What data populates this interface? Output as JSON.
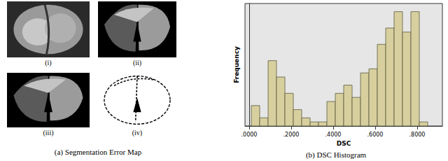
{
  "panels": [
    {
      "caption": "(a) Segmentation Error Map",
      "images": [
        "(i)",
        "(ii)",
        "(iii)",
        "(iv)"
      ]
    }
  ],
  "chart_data": {
    "type": "histogram",
    "caption": "(b) DSC Histogram",
    "x_label": "DSC",
    "y_label": "Frequency",
    "bins": [
      0.01,
      0.05,
      0.09,
      0.13,
      0.17,
      0.21,
      0.25,
      0.29,
      0.33,
      0.37,
      0.41,
      0.45,
      0.49,
      0.53,
      0.57,
      0.61,
      0.65,
      0.69,
      0.73,
      0.77,
      0.81,
      0.85
    ],
    "counts": [
      5,
      2,
      16,
      12,
      8,
      4,
      2,
      1,
      1,
      6,
      8,
      10,
      7,
      13,
      14,
      20,
      24,
      28,
      23,
      28,
      1
    ],
    "color": "#d8cf9e",
    "xlim": [
      -0.02,
      0.92
    ],
    "xticks": [
      {
        "value": 0,
        "label": ".0000"
      },
      {
        "value": 0.2,
        "label": ".2000"
      },
      {
        "value": 0.4,
        "label": ".4000"
      },
      {
        "value": 0.6,
        "label": ".6000"
      },
      {
        "value": 0.8,
        "label": ".8000"
      }
    ],
    "ylim": [
      0,
      30
    ],
    "tick_labels": "x",
    "grid": false
  }
}
